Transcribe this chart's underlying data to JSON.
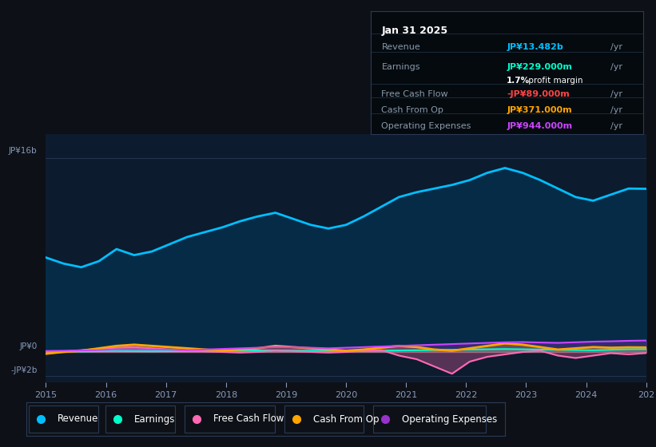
{
  "bg_color": "#0d1117",
  "plot_bg_color": "#0d1b2e",
  "legend": [
    {
      "label": "Revenue",
      "color": "#00bfff"
    },
    {
      "label": "Earnings",
      "color": "#00ffcc"
    },
    {
      "label": "Free Cash Flow",
      "color": "#ff69b4"
    },
    {
      "label": "Cash From Op",
      "color": "#ffa500"
    },
    {
      "label": "Operating Expenses",
      "color": "#9932cc"
    }
  ],
  "tooltip": {
    "date": "Jan 31 2025",
    "revenue_label": "Revenue",
    "revenue_value": "JP¥13.482b",
    "revenue_color": "#00bfff",
    "earnings_label": "Earnings",
    "earnings_value": "JP¥229.000m",
    "earnings_color": "#00ffcc",
    "margin_text": "1.7%",
    "margin_suffix": " profit margin",
    "fcf_label": "Free Cash Flow",
    "fcf_value": "-JP¥89.000m",
    "fcf_color": "#ff4444",
    "cashop_label": "Cash From Op",
    "cashop_value": "JP¥371.000m",
    "cashop_color": "#ffa500",
    "opex_label": "Operating Expenses",
    "opex_value": "JP¥944.000m",
    "opex_color": "#cc44ff"
  },
  "revenue": [
    7.8,
    7.3,
    7.0,
    7.5,
    8.5,
    8.0,
    8.3,
    8.9,
    9.5,
    9.9,
    10.3,
    10.8,
    11.2,
    11.5,
    11.0,
    10.5,
    10.2,
    10.5,
    11.2,
    12.0,
    12.8,
    13.2,
    13.5,
    13.8,
    14.2,
    14.8,
    15.2,
    14.8,
    14.2,
    13.5,
    12.8,
    12.5,
    13.0,
    13.5,
    13.48
  ],
  "earnings": [
    0.05,
    0.06,
    0.04,
    0.06,
    0.08,
    0.06,
    0.05,
    0.06,
    0.07,
    0.08,
    0.09,
    0.1,
    0.12,
    0.13,
    0.11,
    0.1,
    0.09,
    0.08,
    0.09,
    0.1,
    0.12,
    0.14,
    0.16,
    0.18,
    0.2,
    0.22,
    0.24,
    0.22,
    0.2,
    0.18,
    0.16,
    0.14,
    0.18,
    0.22,
    0.229
  ],
  "fcf": [
    -0.1,
    0.05,
    0.15,
    0.25,
    0.35,
    0.4,
    0.3,
    0.2,
    0.1,
    0.05,
    0.0,
    -0.05,
    0.0,
    0.1,
    0.05,
    0.0,
    -0.05,
    0.0,
    0.1,
    0.15,
    -0.3,
    -0.6,
    -1.2,
    -1.8,
    -0.8,
    -0.4,
    -0.2,
    0.0,
    0.1,
    -0.3,
    -0.5,
    -0.3,
    -0.1,
    -0.2,
    -0.089
  ],
  "cashfromop": [
    -0.15,
    0.0,
    0.1,
    0.3,
    0.5,
    0.6,
    0.5,
    0.4,
    0.3,
    0.2,
    0.1,
    0.2,
    0.3,
    0.5,
    0.4,
    0.3,
    0.2,
    0.1,
    0.2,
    0.35,
    0.5,
    0.4,
    0.2,
    0.1,
    0.3,
    0.5,
    0.7,
    0.6,
    0.4,
    0.2,
    0.3,
    0.4,
    0.35,
    0.38,
    0.371
  ],
  "opex": [
    0.08,
    0.1,
    0.12,
    0.15,
    0.2,
    0.22,
    0.2,
    0.18,
    0.15,
    0.2,
    0.25,
    0.3,
    0.35,
    0.4,
    0.38,
    0.35,
    0.3,
    0.35,
    0.4,
    0.45,
    0.5,
    0.55,
    0.6,
    0.65,
    0.7,
    0.75,
    0.8,
    0.82,
    0.78,
    0.75,
    0.8,
    0.85,
    0.88,
    0.92,
    0.944
  ]
}
